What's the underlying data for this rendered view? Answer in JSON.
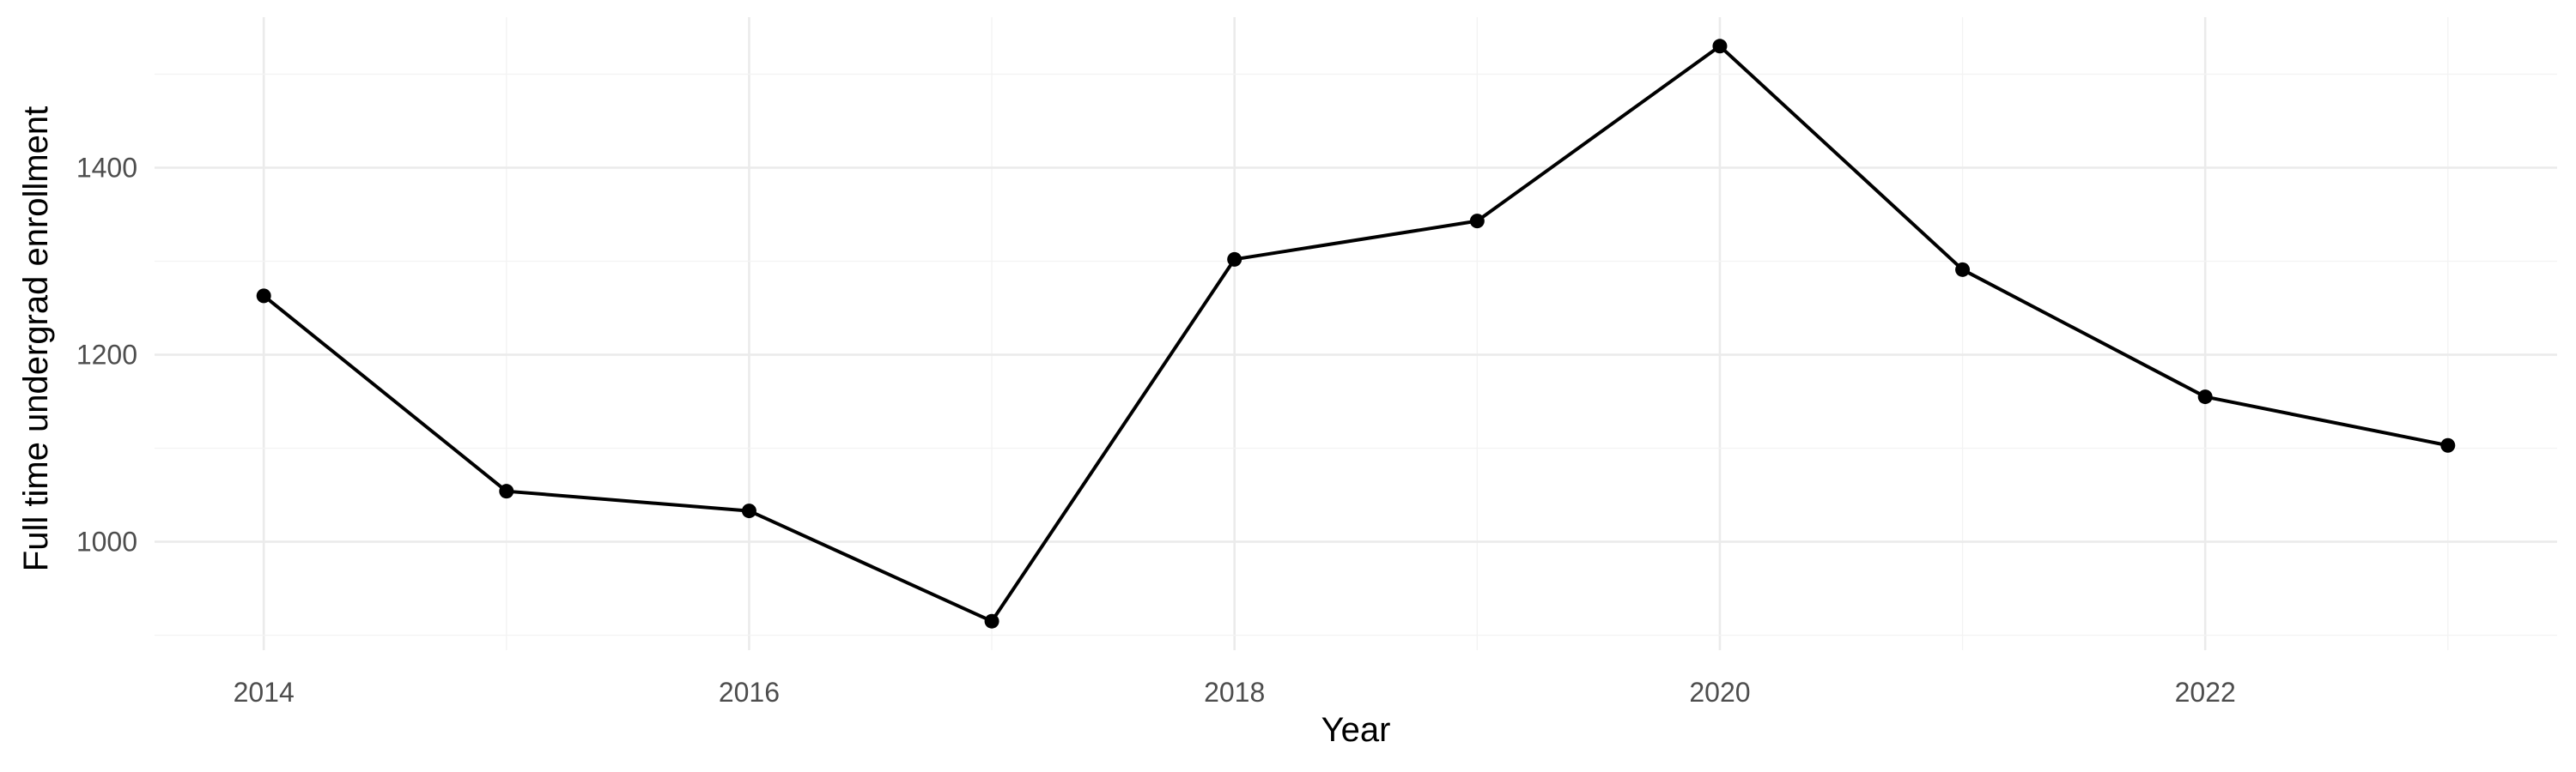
{
  "chart_data": {
    "type": "line",
    "title": "",
    "xlabel": "Year",
    "ylabel": "Full time undergrad enrollment",
    "x": [
      2014,
      2015,
      2016,
      2017,
      2018,
      2019,
      2020,
      2021,
      2022,
      2023
    ],
    "series": [
      {
        "values": [
          1263,
          1054,
          1033,
          915,
          1302,
          1343,
          1530,
          1291,
          1155,
          1103
        ]
      }
    ],
    "xlim": [
      2013.55,
      2023.45
    ],
    "ylim": [
      884,
      1561
    ],
    "x_ticks": [
      2014,
      2016,
      2018,
      2020,
      2022
    ],
    "x_tick_labels": [
      "2014",
      "2016",
      "2018",
      "2020",
      "2022"
    ],
    "y_ticks": [
      1000,
      1200,
      1400
    ],
    "y_tick_labels": [
      "1000",
      "1200",
      "1400"
    ],
    "grid": true,
    "legend": "none",
    "colors": {
      "line": "#000000",
      "points": "#000000",
      "grid_major": "#ebebeb",
      "grid_minor": "#f3f3f3",
      "tick_text": "#4d4d4d",
      "background": "#ffffff"
    }
  }
}
